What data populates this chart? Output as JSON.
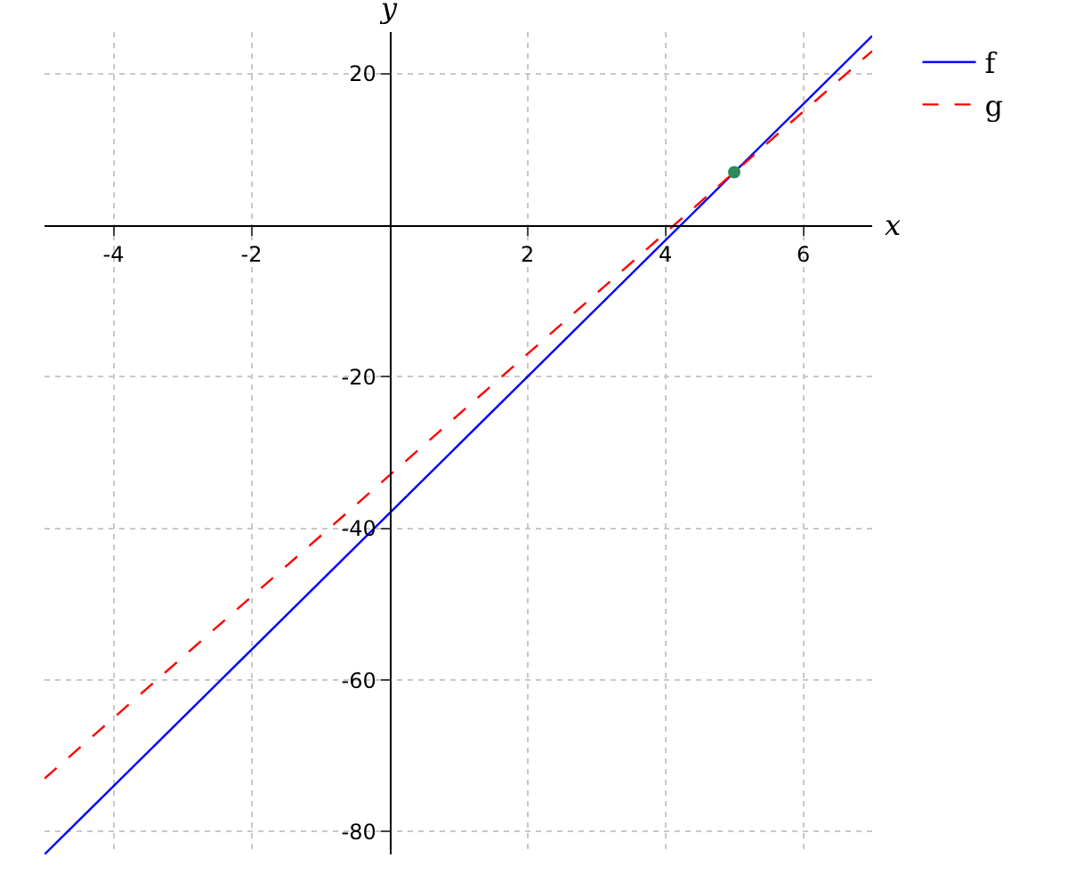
{
  "chart_data": {
    "type": "line",
    "xlabel": "x",
    "ylabel": "y",
    "xlim": [
      -5,
      7
    ],
    "ylim": [
      -83,
      25.5
    ],
    "xticks": [
      -4,
      -2,
      2,
      4,
      6
    ],
    "yticks": [
      -80,
      -60,
      -40,
      -20,
      20
    ],
    "grid": true,
    "legend": "top right",
    "line_style": "solid",
    "marker": "none",
    "series": [
      {
        "name": "f",
        "color": "#0000ff",
        "x": [
          -5,
          7
        ],
        "values": [
          -83,
          25
        ]
      },
      {
        "name": "g",
        "color": "#ff0000",
        "line_style": "dashed",
        "x": [
          -5,
          7
        ],
        "values": [
          -73,
          23
        ]
      },
      {
        "type": "scatter",
        "marker": "circle",
        "color": "#2e8b57",
        "x": [
          5
        ],
        "values": [
          7
        ]
      }
    ]
  }
}
